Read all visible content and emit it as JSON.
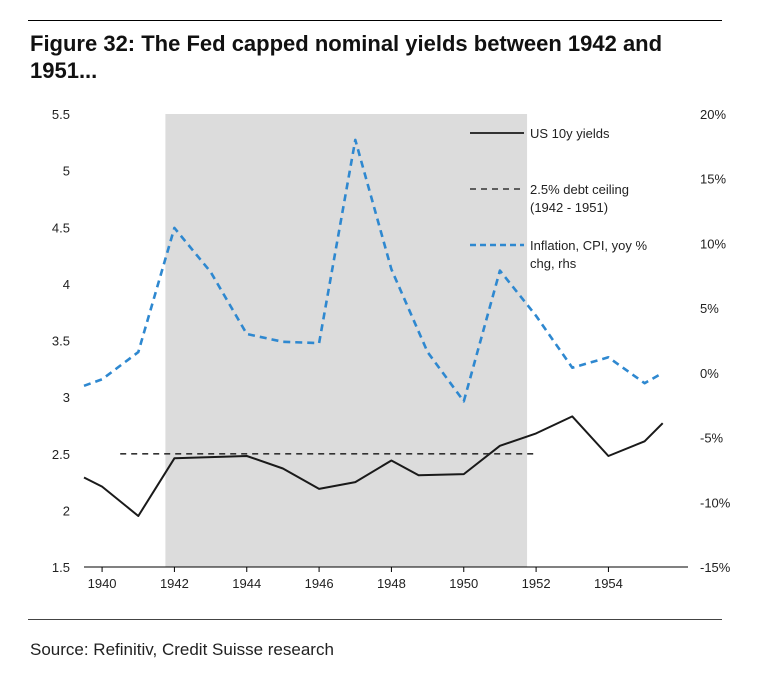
{
  "title": "Figure 32: The Fed capped nominal yields between 1942 and 1951...",
  "source": "Source: Refinitiv, Credit Suisse research",
  "colors": {
    "yield": "#1a1a1a",
    "ceiling": "#333333",
    "inflation": "#2e88d0",
    "shade": "#dcdcdc"
  },
  "chart_data": {
    "type": "line",
    "title": "Figure 32: The Fed capped nominal yields between 1942 and 1951...",
    "shaded_period": [
      1941.75,
      1951.75
    ],
    "x_ticks": [
      "1940",
      "1942",
      "1944",
      "1946",
      "1948",
      "1950",
      "1952",
      "1954"
    ],
    "y_left_ticks": [
      "1.5",
      "2",
      "2.5",
      "3",
      "3.5",
      "4",
      "4.5",
      "5",
      "5.5"
    ],
    "y_right_ticks": [
      "-15%",
      "-10%",
      "-5%",
      "0%",
      "5%",
      "10%",
      "15%",
      "20%"
    ],
    "ylim_left": [
      1.5,
      5.5
    ],
    "ylim_right": [
      -15,
      20
    ],
    "xlim": [
      1939.5,
      1956.2
    ],
    "legend_position": "top-right",
    "series": [
      {
        "name": "US 10y yields",
        "axis": "left",
        "style": "solid",
        "points": [
          [
            1939.5,
            2.29
          ],
          [
            1940.0,
            2.21
          ],
          [
            1941.0,
            1.95
          ],
          [
            1942.0,
            2.46
          ],
          [
            1943.0,
            2.47
          ],
          [
            1944.0,
            2.48
          ],
          [
            1945.0,
            2.37
          ],
          [
            1946.0,
            2.19
          ],
          [
            1947.0,
            2.25
          ],
          [
            1948.0,
            2.44
          ],
          [
            1948.75,
            2.31
          ],
          [
            1950.0,
            2.32
          ],
          [
            1951.0,
            2.57
          ],
          [
            1952.0,
            2.68
          ],
          [
            1953.0,
            2.83
          ],
          [
            1954.0,
            2.48
          ],
          [
            1955.0,
            2.61
          ],
          [
            1955.5,
            2.77
          ]
        ]
      },
      {
        "name": "2.5% debt ceiling (1942 - 1951)",
        "axis": "left",
        "style": "dashed",
        "points": [
          [
            1940.5,
            2.5
          ],
          [
            1952.0,
            2.5
          ]
        ]
      },
      {
        "name": "Inflation, CPI, yoy % chg, rhs",
        "axis": "right",
        "style": "dashed",
        "points": [
          [
            1939.5,
            -1.0
          ],
          [
            1940.0,
            -0.5
          ],
          [
            1941.0,
            1.6
          ],
          [
            1942.0,
            11.2
          ],
          [
            1943.0,
            7.8
          ],
          [
            1944.0,
            3.0
          ],
          [
            1945.0,
            2.4
          ],
          [
            1946.0,
            2.3
          ],
          [
            1947.0,
            18.0
          ],
          [
            1948.0,
            8.0
          ],
          [
            1949.0,
            1.6
          ],
          [
            1950.0,
            -2.2
          ],
          [
            1951.0,
            7.9
          ],
          [
            1952.0,
            4.4
          ],
          [
            1953.0,
            0.4
          ],
          [
            1954.0,
            1.2
          ],
          [
            1955.0,
            -0.8
          ],
          [
            1955.5,
            0.0
          ]
        ]
      }
    ]
  },
  "legend": [
    {
      "label_lines": [
        "US 10y yields"
      ],
      "style": "solid"
    },
    {
      "label_lines": [
        "2.5% debt ceiling",
        "(1942 - 1951)"
      ],
      "style": "dashed-dark"
    },
    {
      "label_lines": [
        "Inflation, CPI, yoy %",
        "chg, rhs"
      ],
      "style": "dashed-blue"
    }
  ]
}
